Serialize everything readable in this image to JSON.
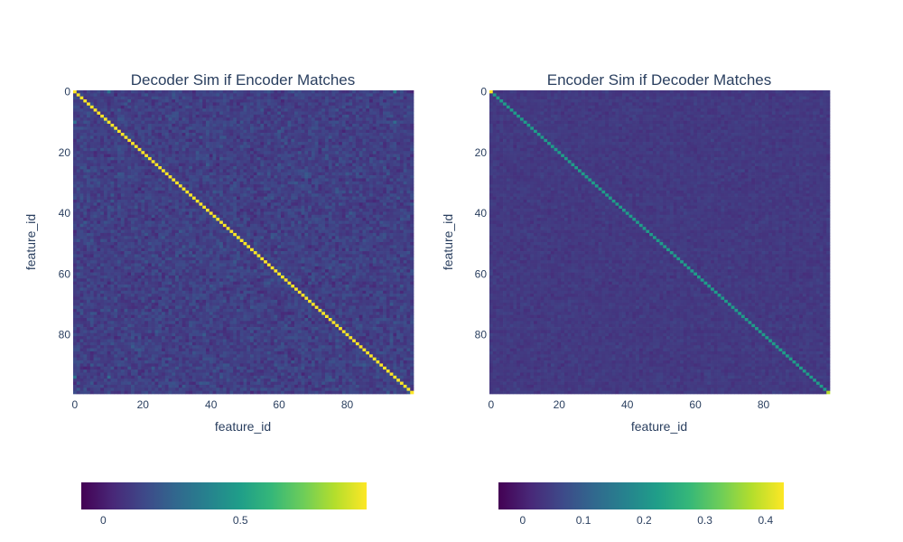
{
  "chart_data": [
    {
      "type": "heatmap",
      "title": "Decoder Sim if Encoder Matches",
      "xlabel": "feature_id",
      "ylabel": "feature_id",
      "n_features": 100,
      "x_ticks": [
        0,
        20,
        40,
        60,
        80
      ],
      "y_ticks": [
        0,
        20,
        40,
        60,
        80
      ],
      "y_reversed": true,
      "colorscale": "viridis",
      "zmin": -0.08,
      "zmax": 0.96,
      "colorbar_ticks": [
        0,
        0.5
      ],
      "colorbar_tick_labels": [
        "0",
        "0.5"
      ],
      "diagonal_value": 0.96,
      "offdiagonal_mean": 0.12,
      "offdiagonal_spread": 0.07,
      "notable_cells": [
        {
          "row": 0,
          "col": 10,
          "value": 0.32
        },
        {
          "row": 0,
          "col": 94,
          "value": 0.36
        },
        {
          "row": 10,
          "col": 0,
          "value": 0.3
        },
        {
          "row": 94,
          "col": 0,
          "value": 0.32
        },
        {
          "row": 10,
          "col": 94,
          "value": 0.28
        },
        {
          "row": 94,
          "col": 10,
          "value": 0.28
        }
      ]
    },
    {
      "type": "heatmap",
      "title": "Encoder Sim if Decoder Matches",
      "xlabel": "feature_id",
      "ylabel": "feature_id",
      "n_features": 100,
      "x_ticks": [
        0,
        20,
        40,
        60,
        80
      ],
      "y_ticks": [
        0,
        20,
        40,
        60,
        80
      ],
      "y_reversed": true,
      "colorscale": "viridis",
      "zmin": -0.04,
      "zmax": 0.43,
      "colorbar_ticks": [
        0,
        0.1,
        0.2,
        0.3,
        0.4
      ],
      "colorbar_tick_labels": [
        "0",
        "0.1",
        "0.2",
        "0.3",
        "0.4"
      ],
      "diagonal_value": 0.22,
      "offdiagonal_mean": 0.04,
      "offdiagonal_spread": 0.015,
      "notable_cells": [
        {
          "row": 0,
          "col": 0,
          "value": 0.43
        },
        {
          "row": 99,
          "col": 99,
          "value": 0.38
        }
      ]
    }
  ]
}
